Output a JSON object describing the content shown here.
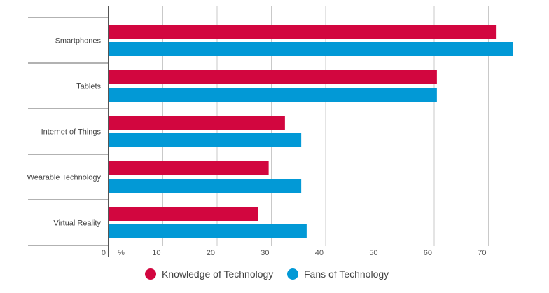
{
  "chart_data": {
    "type": "bar",
    "orientation": "horizontal",
    "categories": [
      "Smartphones",
      "Tablets",
      "Internet of Things",
      "Wearable Technology",
      "Virtual Reality"
    ],
    "series": [
      {
        "name": "Knowledge of Technology",
        "color": "#d2063f",
        "values": [
          71.5,
          60.5,
          32.5,
          29.5,
          27.5
        ]
      },
      {
        "name": "Fans of Technology",
        "color": "#0299d6",
        "values": [
          74.5,
          60.5,
          35.5,
          35.5,
          36.5
        ]
      }
    ],
    "xlim": [
      0,
      80
    ],
    "xticks": [
      0,
      10,
      20,
      30,
      40,
      50,
      60,
      70
    ],
    "xunit": "%",
    "grid": "vertical",
    "legend_position": "bottom-center"
  }
}
